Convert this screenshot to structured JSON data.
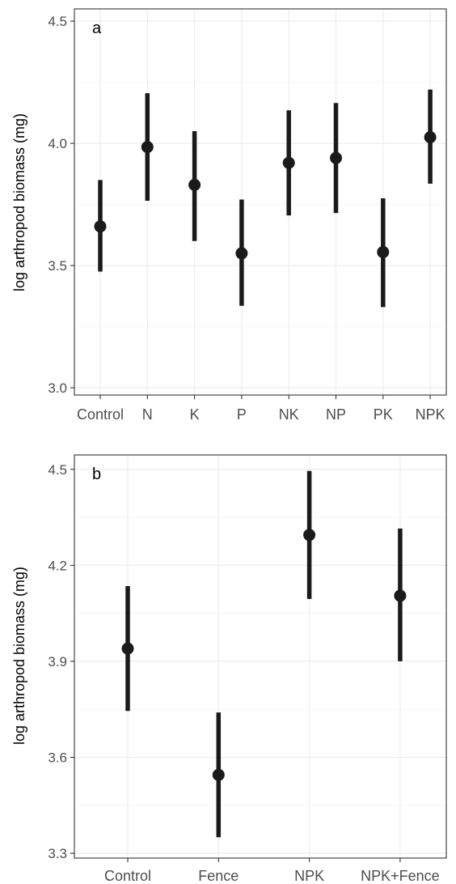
{
  "chart_data": [
    {
      "type": "pointrange",
      "panel_tag": "a",
      "ylabel": "log arthropod biomass (mg)",
      "ylim": [
        2.97,
        4.55
      ],
      "yticks": [
        3.0,
        3.5,
        4.0,
        4.5
      ],
      "ytick_labels": [
        "3.0",
        "3.5",
        "4.0",
        "4.5"
      ],
      "grid": true,
      "categories": [
        "Control",
        "N",
        "K",
        "P",
        "NK",
        "NP",
        "PK",
        "NPK"
      ],
      "series": [
        {
          "values": [
            3.66,
            3.985,
            3.83,
            3.55,
            3.92,
            3.94,
            3.555,
            4.025
          ],
          "lower": [
            3.475,
            3.765,
            3.6,
            3.335,
            3.705,
            3.715,
            3.33,
            3.835
          ],
          "upper": [
            3.85,
            4.205,
            4.05,
            3.77,
            4.135,
            4.165,
            3.775,
            4.22
          ]
        }
      ],
      "colors": {
        "point": "#1a1a1a"
      }
    },
    {
      "type": "pointrange",
      "panel_tag": "b",
      "ylabel": "log arthropod biomass (mg)",
      "ylim": [
        3.285,
        4.545
      ],
      "yticks": [
        3.3,
        3.6,
        3.9,
        4.2,
        4.5
      ],
      "ytick_labels": [
        "3.3",
        "3.6",
        "3.9",
        "4.2",
        "4.5"
      ],
      "grid": true,
      "categories": [
        "Control",
        "Fence",
        "NPK",
        "NPK+Fence"
      ],
      "series": [
        {
          "values": [
            3.94,
            3.545,
            4.295,
            4.105
          ],
          "lower": [
            3.745,
            3.35,
            4.095,
            3.9
          ],
          "upper": [
            4.135,
            3.74,
            4.495,
            4.315
          ]
        }
      ],
      "colors": {
        "point": "#1a1a1a"
      }
    }
  ]
}
